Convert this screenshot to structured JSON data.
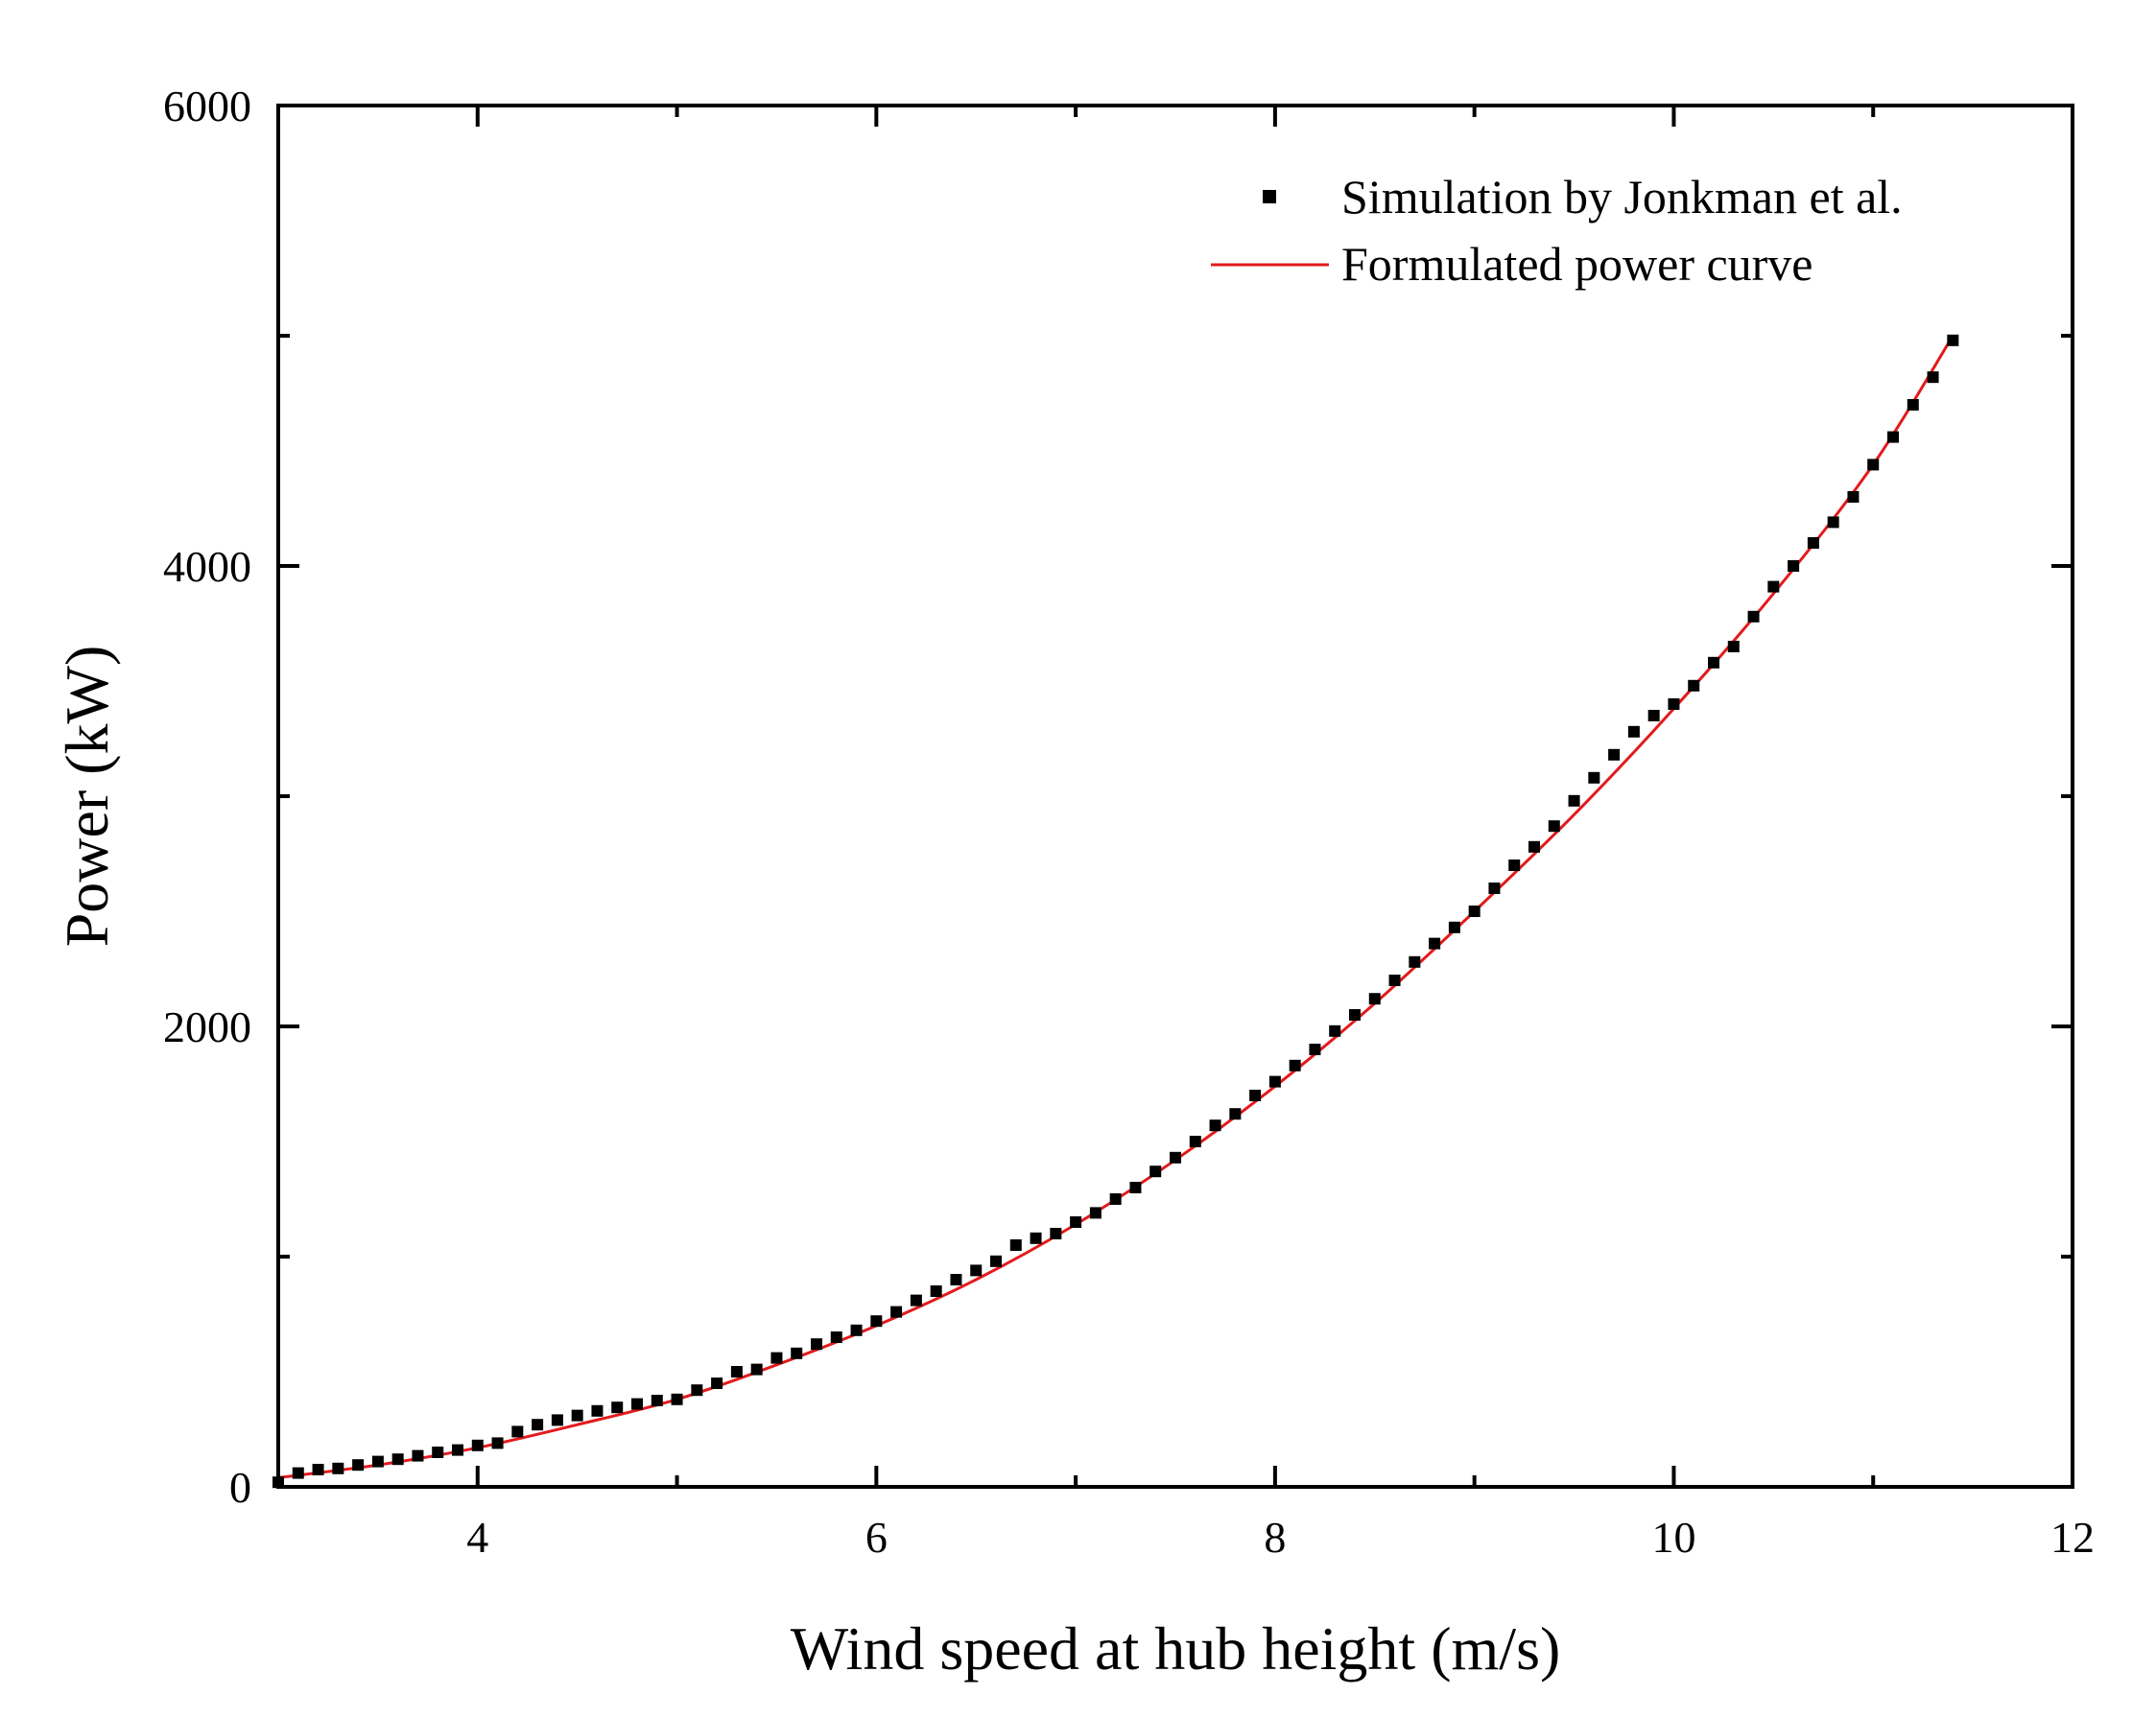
{
  "chart_data": {
    "type": "scatter",
    "xlabel": "Wind speed at hub height (m/s)",
    "ylabel": "Power (kW)",
    "xlim": [
      3,
      12
    ],
    "ylim": [
      0,
      6000
    ],
    "xticks_major": [
      4,
      6,
      8,
      10,
      12
    ],
    "xticks_minor": [
      5,
      7,
      9,
      11
    ],
    "yticks_major": [
      0,
      2000,
      4000,
      6000
    ],
    "yticks_minor": [
      1000,
      3000,
      5000
    ],
    "grid": false,
    "legend_position": "top-right",
    "series": [
      {
        "name": "Simulation by Jonkman et al.",
        "kind": "scatter",
        "marker": "square",
        "color": "#000000",
        "x": [
          3.0,
          3.1,
          3.2,
          3.3,
          3.4,
          3.5,
          3.6,
          3.7,
          3.8,
          3.9,
          4.0,
          4.1,
          4.2,
          4.3,
          4.4,
          4.5,
          4.6,
          4.7,
          4.8,
          4.9,
          5.0,
          5.1,
          5.2,
          5.3,
          5.4,
          5.5,
          5.6,
          5.7,
          5.8,
          5.9,
          6.0,
          6.1,
          6.2,
          6.3,
          6.4,
          6.5,
          6.6,
          6.7,
          6.8,
          6.9,
          7.0,
          7.1,
          7.2,
          7.3,
          7.4,
          7.5,
          7.6,
          7.7,
          7.8,
          7.9,
          8.0,
          8.1,
          8.2,
          8.3,
          8.4,
          8.5,
          8.6,
          8.7,
          8.8,
          8.9,
          9.0,
          9.1,
          9.2,
          9.3,
          9.4,
          9.5,
          9.6,
          9.7,
          9.8,
          9.9,
          10.0,
          10.1,
          10.2,
          10.3,
          10.4,
          10.5,
          10.6,
          10.7,
          10.8,
          10.9,
          11.0,
          11.1,
          11.2,
          11.3,
          11.4
        ],
        "y": [
          20,
          60,
          75,
          80,
          95,
          110,
          120,
          135,
          150,
          160,
          180,
          190,
          240,
          270,
          290,
          310,
          330,
          345,
          360,
          375,
          380,
          420,
          450,
          500,
          510,
          560,
          580,
          620,
          650,
          680,
          720,
          760,
          810,
          850,
          900,
          940,
          980,
          1050,
          1080,
          1100,
          1150,
          1190,
          1250,
          1300,
          1370,
          1430,
          1500,
          1570,
          1620,
          1700,
          1760,
          1830,
          1900,
          1980,
          2050,
          2120,
          2200,
          2280,
          2360,
          2430,
          2500,
          2600,
          2700,
          2780,
          2870,
          2980,
          3080,
          3180,
          3280,
          3350,
          3400,
          3480,
          3580,
          3650,
          3780,
          3910,
          4000,
          4100,
          4190,
          4300,
          4440,
          4560,
          4700,
          4820,
          4980
        ]
      },
      {
        "name": "Formulated power curve",
        "kind": "line",
        "color": "#e31a1c",
        "x": [
          3.0,
          3.5,
          4.0,
          4.5,
          5.0,
          5.5,
          6.0,
          6.5,
          7.0,
          7.5,
          8.0,
          8.5,
          9.0,
          9.5,
          10.0,
          10.5,
          11.0,
          11.4
        ],
        "y": [
          40,
          95,
          170,
          270,
          380,
          530,
          700,
          900,
          1140,
          1420,
          1740,
          2100,
          2500,
          2920,
          3380,
          3880,
          4440,
          5000
        ]
      }
    ]
  }
}
